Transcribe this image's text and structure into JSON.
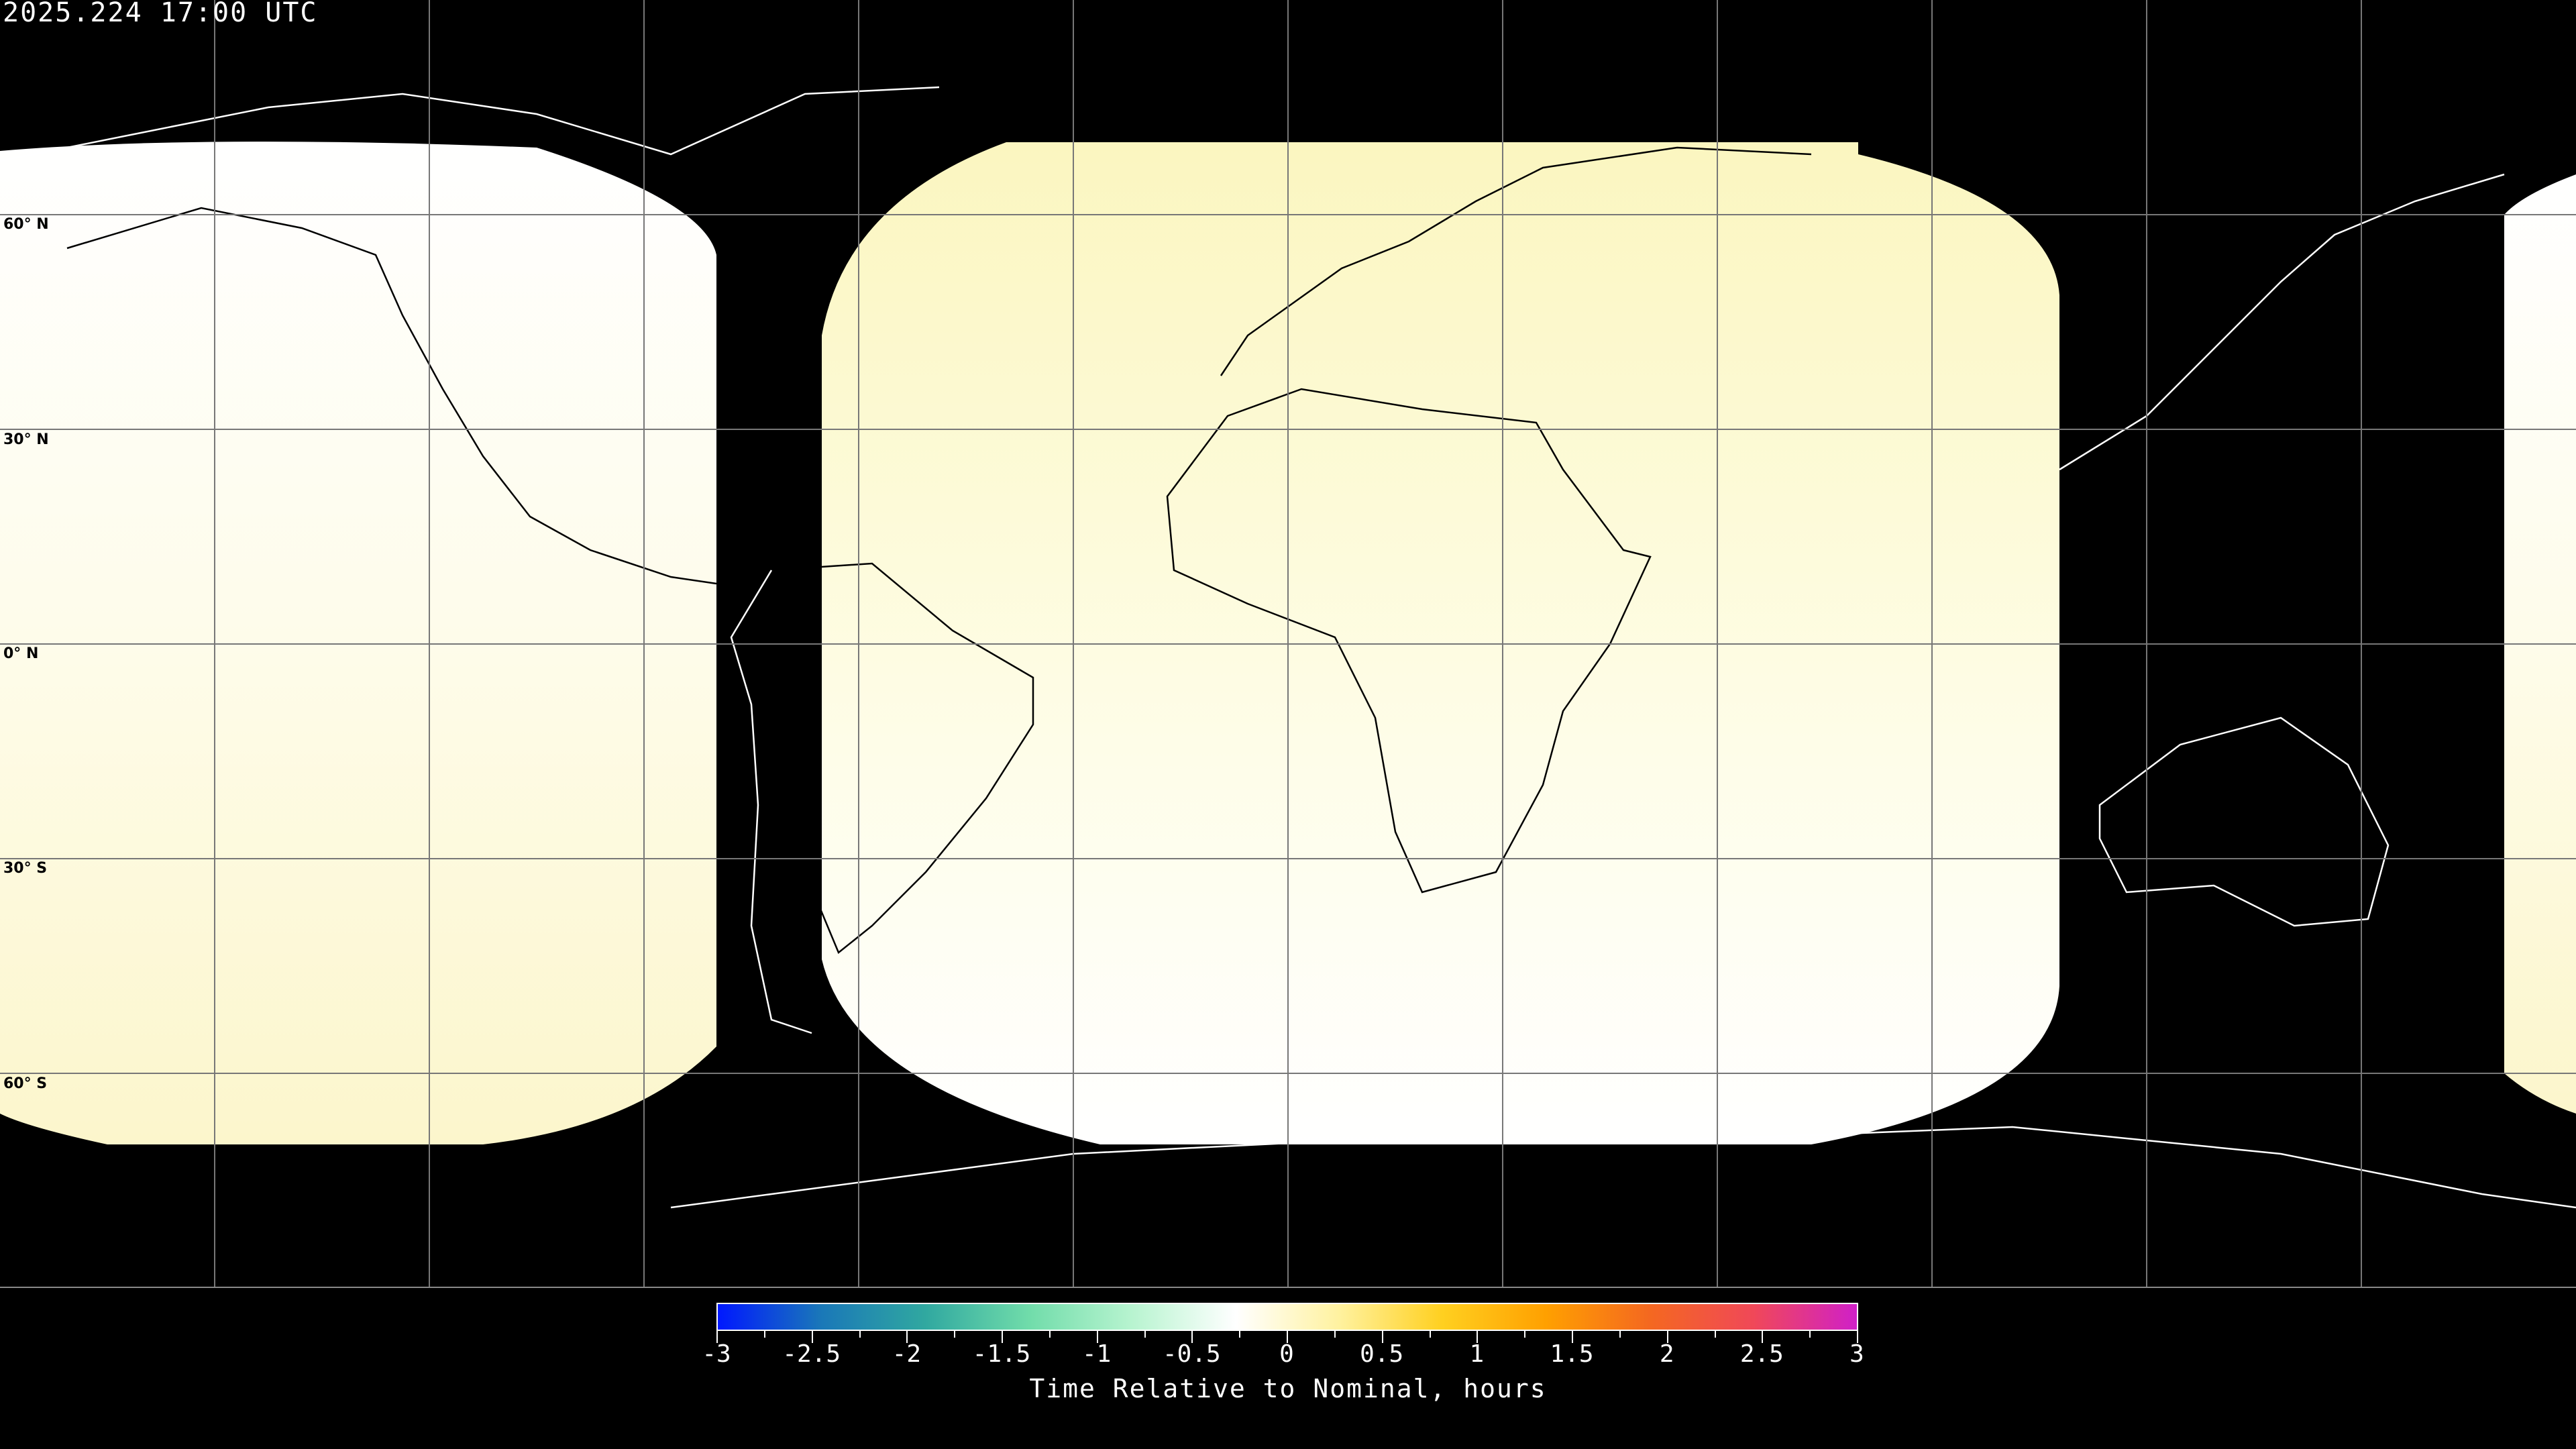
{
  "header": {
    "timestamp": "2025.224 17:00 UTC"
  },
  "map": {
    "projection": "equirectangular",
    "graticule_spacing_deg": 30,
    "lat_labels": [
      "60° N",
      "30° N",
      "0° N",
      "30° S",
      "60° S"
    ],
    "background_color": "#000000",
    "coastline_color_on_dark": "#ffffff",
    "coastline_color_on_light": "#000000",
    "coverage_fill_top_color": "#fbf7c4",
    "coverage_fill_bottom_color": "#ffffff"
  },
  "colorbar": {
    "title": "Time Relative to Nominal, hours",
    "min": -3,
    "max": 3,
    "tick_labels": [
      "-3",
      "-2.5",
      "-2",
      "-1.5",
      "-1",
      "-0.5",
      "0",
      "0.5",
      "1",
      "1.5",
      "2",
      "2.5",
      "3"
    ],
    "colors": [
      "#0018ff",
      "#1a78b8",
      "#30a8a0",
      "#70dcaa",
      "#b8f4d0",
      "#ffffff",
      "#fff2a0",
      "#ffd020",
      "#ffa000",
      "#f46820",
      "#f04858",
      "#d020c8"
    ]
  }
}
